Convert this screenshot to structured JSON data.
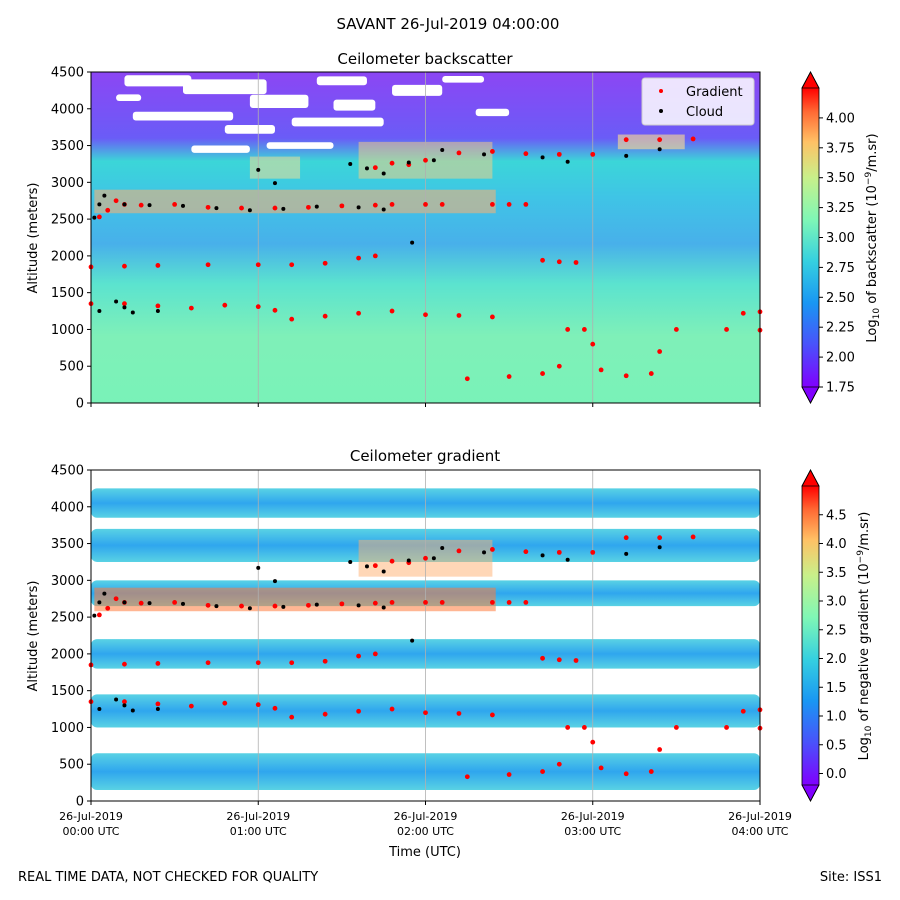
{
  "suptitle": "SAVANT 26-Jul-2019 04:00:00",
  "footer": {
    "left": "REAL TIME DATA, NOT CHECKED FOR QUALITY",
    "right": "Site: ISS1"
  },
  "colors": {
    "gradient_marker": "#ff0000",
    "cloud_marker": "#000000",
    "grid": "#b0b0b0",
    "colormap": "rainbow"
  },
  "chart_data": [
    {
      "type": "heatmap",
      "title": "Ceilometer backscatter",
      "ylabel": "Altitude (meters)",
      "ylim": [
        0,
        4500
      ],
      "yticks": [
        "0",
        "500",
        "1000",
        "1500",
        "2000",
        "2500",
        "3000",
        "3500",
        "4000",
        "4500"
      ],
      "xticks": [
        [
          "26-Jul-2019",
          "00:00 UTC"
        ],
        [
          "26-Jul-2019",
          "01:00 UTC"
        ],
        [
          "26-Jul-2019",
          "02:00 UTC"
        ],
        [
          "26-Jul-2019",
          "03:00 UTC"
        ],
        [
          "26-Jul-2019",
          "04:00 UTC"
        ]
      ],
      "xlabel": "",
      "colorbar": {
        "label_prefix": "Log",
        "label_sub": "10",
        "label_mid": " of backscatter (10",
        "label_sup": "−9",
        "label_suffix": "/m.sr)",
        "range": [
          1.75,
          4.25
        ],
        "ticks": [
          "1.75",
          "2.00",
          "2.25",
          "2.50",
          "2.75",
          "3.00",
          "3.25",
          "3.50",
          "3.75",
          "4.00"
        ],
        "tick_values": [
          1.75,
          2.0,
          2.25,
          2.5,
          2.75,
          3.0,
          3.25,
          3.5,
          3.75,
          4.0
        ]
      },
      "legend": {
        "placement": "top-right",
        "entries": [
          "Gradient",
          "Cloud"
        ]
      },
      "series": [
        {
          "name": "Gradient",
          "marker": "red dot",
          "points": [
            [
              0.05,
              2530
            ],
            [
              0.1,
              2620
            ],
            [
              0.15,
              2750
            ],
            [
              0.2,
              2700
            ],
            [
              0.3,
              2690
            ],
            [
              0.5,
              2700
            ],
            [
              0.7,
              2660
            ],
            [
              0.9,
              2650
            ],
            [
              1.1,
              2650
            ],
            [
              1.3,
              2660
            ],
            [
              1.5,
              2680
            ],
            [
              1.7,
              2690
            ],
            [
              1.8,
              2700
            ],
            [
              2.0,
              2700
            ],
            [
              2.1,
              2700
            ],
            [
              1.7,
              3200
            ],
            [
              1.8,
              3260
            ],
            [
              1.9,
              3240
            ],
            [
              2.0,
              3300
            ],
            [
              2.2,
              3400
            ],
            [
              2.4,
              3420
            ],
            [
              2.6,
              3390
            ],
            [
              2.8,
              3380
            ],
            [
              3.0,
              3380
            ],
            [
              3.2,
              3580
            ],
            [
              3.4,
              3580
            ],
            [
              3.6,
              3590
            ],
            [
              2.4,
              2700
            ],
            [
              2.5,
              2700
            ],
            [
              2.6,
              2700
            ],
            [
              2.7,
              1940
            ],
            [
              2.8,
              1920
            ],
            [
              2.9,
              1910
            ],
            [
              0.0,
              1850
            ],
            [
              0.2,
              1860
            ],
            [
              0.4,
              1870
            ],
            [
              0.7,
              1880
            ],
            [
              1.0,
              1880
            ],
            [
              1.2,
              1880
            ],
            [
              1.4,
              1900
            ],
            [
              1.6,
              1970
            ],
            [
              1.7,
              2000
            ],
            [
              0.0,
              1350
            ],
            [
              0.2,
              1350
            ],
            [
              0.4,
              1320
            ],
            [
              0.6,
              1290
            ],
            [
              0.8,
              1330
            ],
            [
              1.0,
              1310
            ],
            [
              1.1,
              1260
            ],
            [
              1.2,
              1140
            ],
            [
              1.4,
              1180
            ],
            [
              1.6,
              1220
            ],
            [
              1.8,
              1250
            ],
            [
              2.0,
              1200
            ],
            [
              2.2,
              1190
            ],
            [
              2.4,
              1170
            ],
            [
              2.25,
              330
            ],
            [
              2.5,
              360
            ],
            [
              2.7,
              400
            ],
            [
              2.8,
              500
            ],
            [
              2.85,
              1000
            ],
            [
              2.95,
              1000
            ],
            [
              3.0,
              800
            ],
            [
              3.05,
              450
            ],
            [
              3.2,
              370
            ],
            [
              3.35,
              400
            ],
            [
              3.4,
              700
            ],
            [
              3.5,
              1000
            ],
            [
              3.8,
              1000
            ],
            [
              4.0,
              990
            ],
            [
              3.9,
              1220
            ],
            [
              4.0,
              1240
            ]
          ]
        },
        {
          "name": "Cloud",
          "marker": "black dot",
          "points": [
            [
              0.02,
              2520
            ],
            [
              0.05,
              2700
            ],
            [
              0.08,
              2820
            ],
            [
              0.2,
              2700
            ],
            [
              0.35,
              2690
            ],
            [
              0.55,
              2680
            ],
            [
              0.75,
              2650
            ],
            [
              0.95,
              2620
            ],
            [
              1.15,
              2640
            ],
            [
              1.35,
              2670
            ],
            [
              1.6,
              2660
            ],
            [
              1.75,
              2630
            ],
            [
              1.0,
              3170
            ],
            [
              1.1,
              2990
            ],
            [
              1.55,
              3250
            ],
            [
              1.65,
              3190
            ],
            [
              1.75,
              3120
            ],
            [
              1.9,
              3270
            ],
            [
              2.05,
              3300
            ],
            [
              2.1,
              3440
            ],
            [
              2.35,
              3380
            ],
            [
              2.7,
              3340
            ],
            [
              2.85,
              3280
            ],
            [
              3.2,
              3360
            ],
            [
              3.4,
              3450
            ],
            [
              0.05,
              1250
            ],
            [
              0.15,
              1380
            ],
            [
              0.2,
              1300
            ],
            [
              0.25,
              1230
            ],
            [
              0.4,
              1250
            ],
            [
              1.92,
              2180
            ]
          ]
        }
      ]
    },
    {
      "type": "heatmap",
      "title": "Ceilometer gradient",
      "ylabel": "Altitude (meters)",
      "ylim": [
        0,
        4500
      ],
      "yticks": [
        "0",
        "500",
        "1000",
        "1500",
        "2000",
        "2500",
        "3000",
        "3500",
        "4000",
        "4500"
      ],
      "xticks": [
        [
          "26-Jul-2019",
          "00:00 UTC"
        ],
        [
          "26-Jul-2019",
          "01:00 UTC"
        ],
        [
          "26-Jul-2019",
          "02:00 UTC"
        ],
        [
          "26-Jul-2019",
          "03:00 UTC"
        ],
        [
          "26-Jul-2019",
          "04:00 UTC"
        ]
      ],
      "xlabel": "Time (UTC)",
      "colorbar": {
        "label_prefix": "Log",
        "label_sub": "10",
        "label_mid": " of negative gradient (10",
        "label_sup": "−9",
        "label_suffix": "/m.sr)",
        "range": [
          -0.2,
          5.0
        ],
        "ticks": [
          "0.0",
          "0.5",
          "1.0",
          "1.5",
          "2.0",
          "2.5",
          "3.0",
          "3.5",
          "4.0",
          "4.5"
        ],
        "tick_values": [
          0.0,
          0.5,
          1.0,
          1.5,
          2.0,
          2.5,
          3.0,
          3.5,
          4.0,
          4.5
        ]
      },
      "bands": [
        [
          150,
          650
        ],
        [
          1000,
          1450
        ],
        [
          1800,
          2200
        ],
        [
          2650,
          3000
        ],
        [
          3250,
          3700
        ],
        [
          3850,
          4250
        ]
      ]
    }
  ]
}
